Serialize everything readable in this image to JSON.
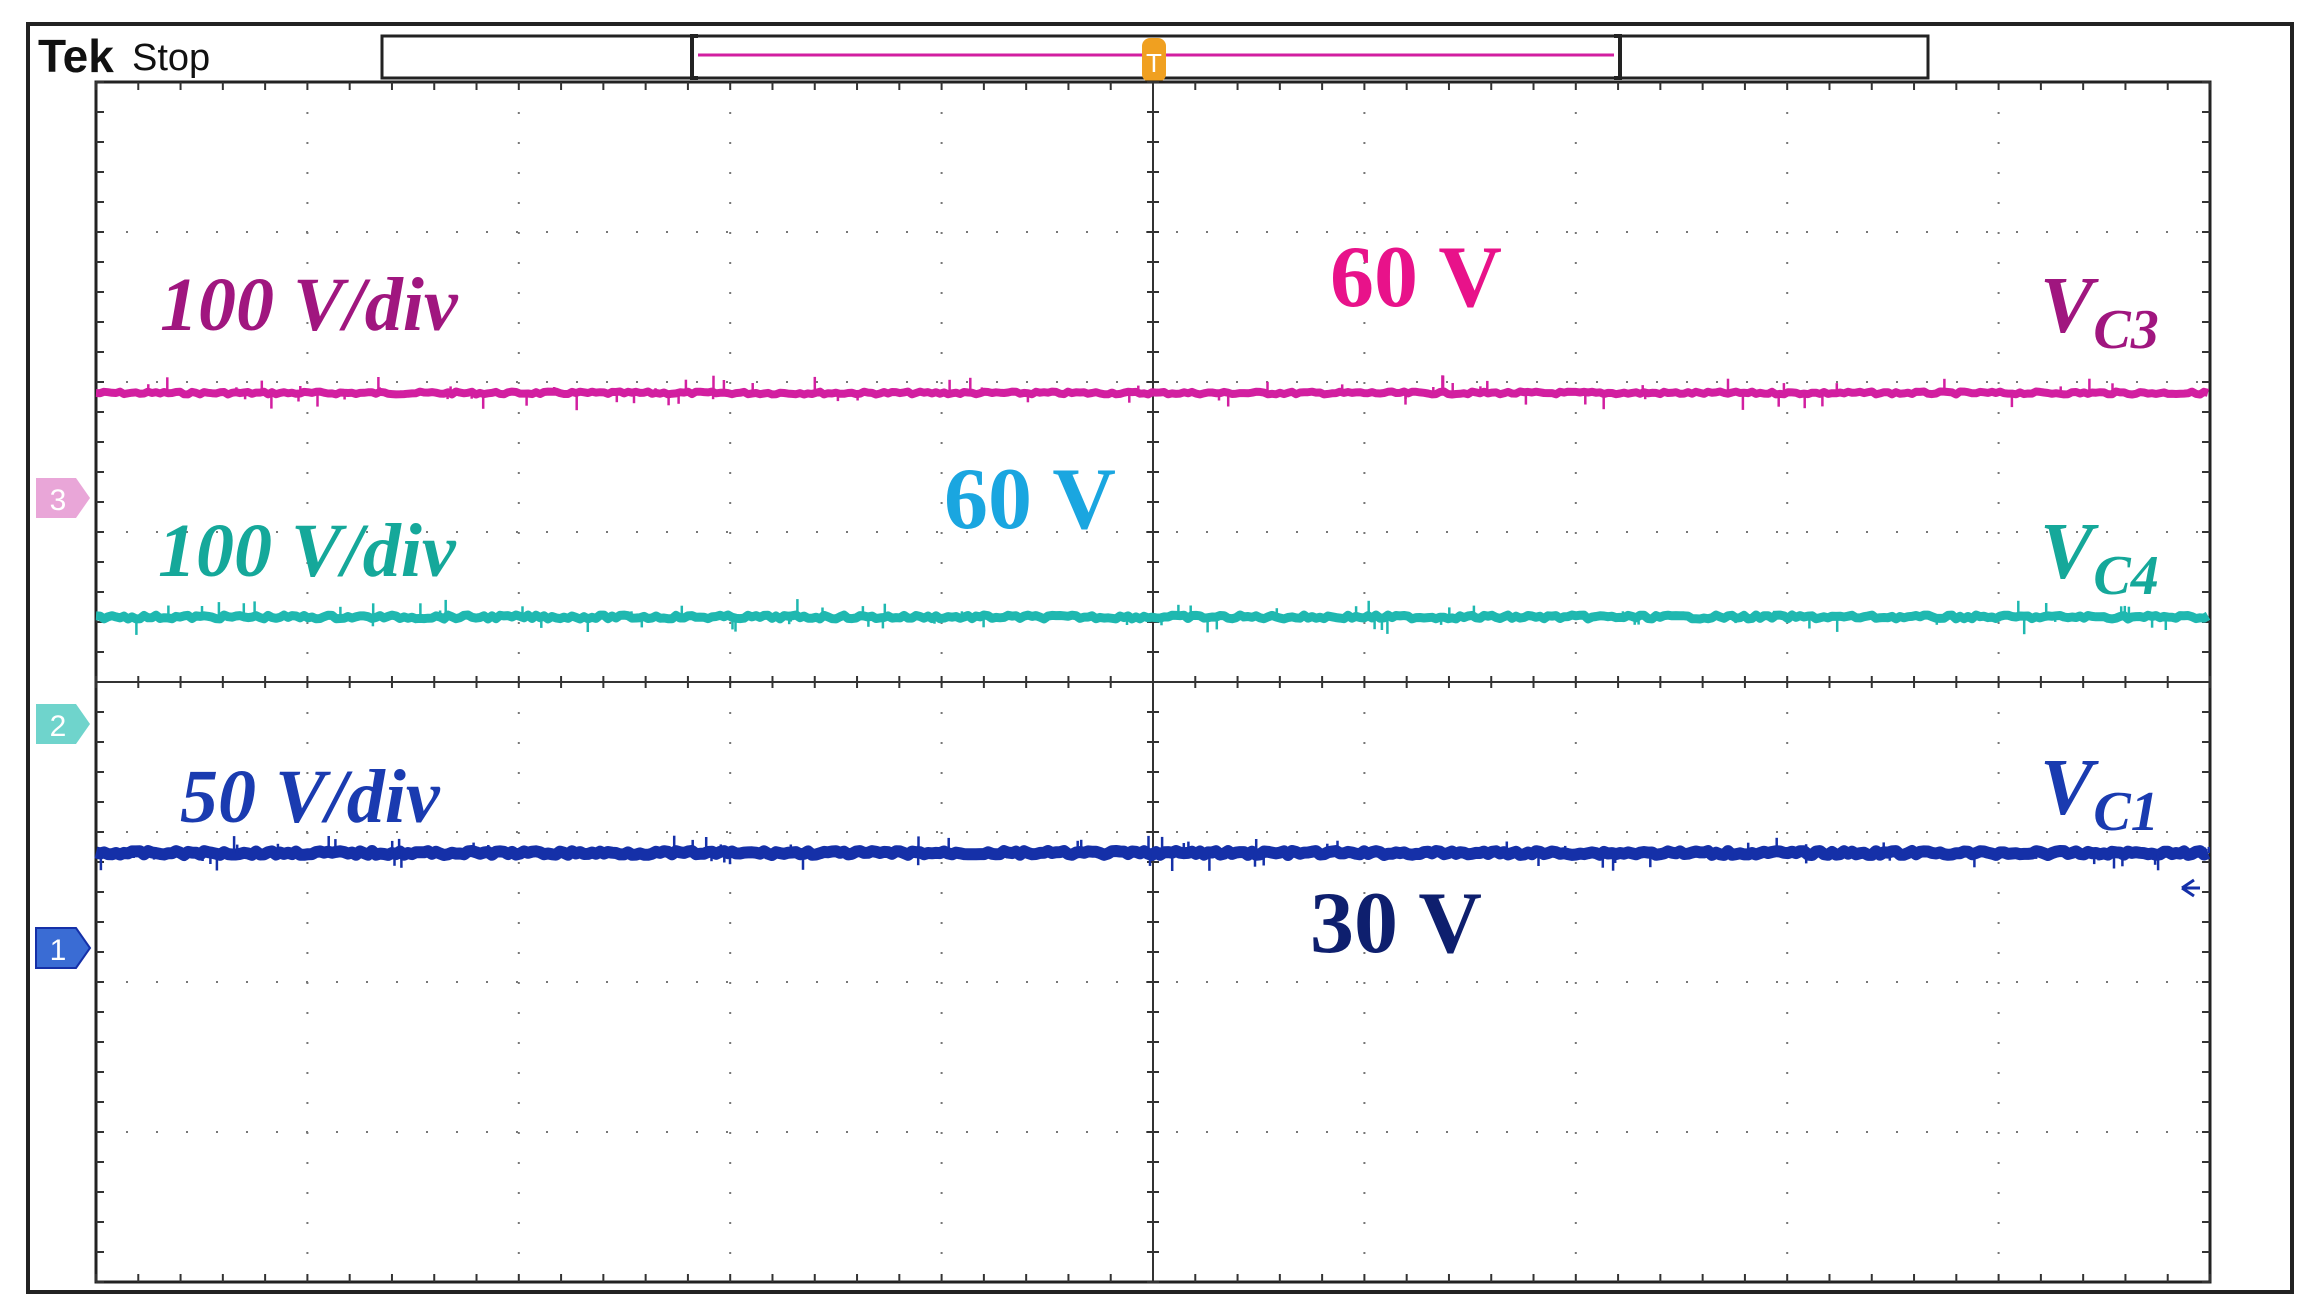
{
  "header": {
    "brand": "Tek",
    "status": "Stop"
  },
  "markers": {
    "trigger_label": "T",
    "ch3": "3",
    "ch2": "2",
    "ch1": "1"
  },
  "colors": {
    "ch3": "#d21fa0",
    "ch3_label": "#a0167f",
    "ch3_value": "#e8128a",
    "ch4": "#1fb8b0",
    "ch4_label": "#15a89a",
    "ch4_value": "#1aa6e0",
    "ch1": "#1530a8",
    "ch1_label": "#1a3bb0",
    "ch1_value": "#0e1f6e",
    "trigger": "#f0a020",
    "grid": "#555555"
  },
  "chart_data": {
    "type": "line",
    "grid": true,
    "divisions": {
      "x": 10,
      "y": 8
    },
    "series": [
      {
        "name": "V_C3",
        "name_main": "V",
        "name_sub": "C3",
        "scale": "100 V/div",
        "value_label": "60 V",
        "level": 60
      },
      {
        "name": "V_C4",
        "name_main": "V",
        "name_sub": "C4",
        "scale": "100 V/div",
        "value_label": "60 V",
        "level": 60
      },
      {
        "name": "V_C1",
        "name_main": "V",
        "name_sub": "C1",
        "scale": "50 V/div",
        "value_label": "30 V",
        "level": 30
      }
    ]
  }
}
